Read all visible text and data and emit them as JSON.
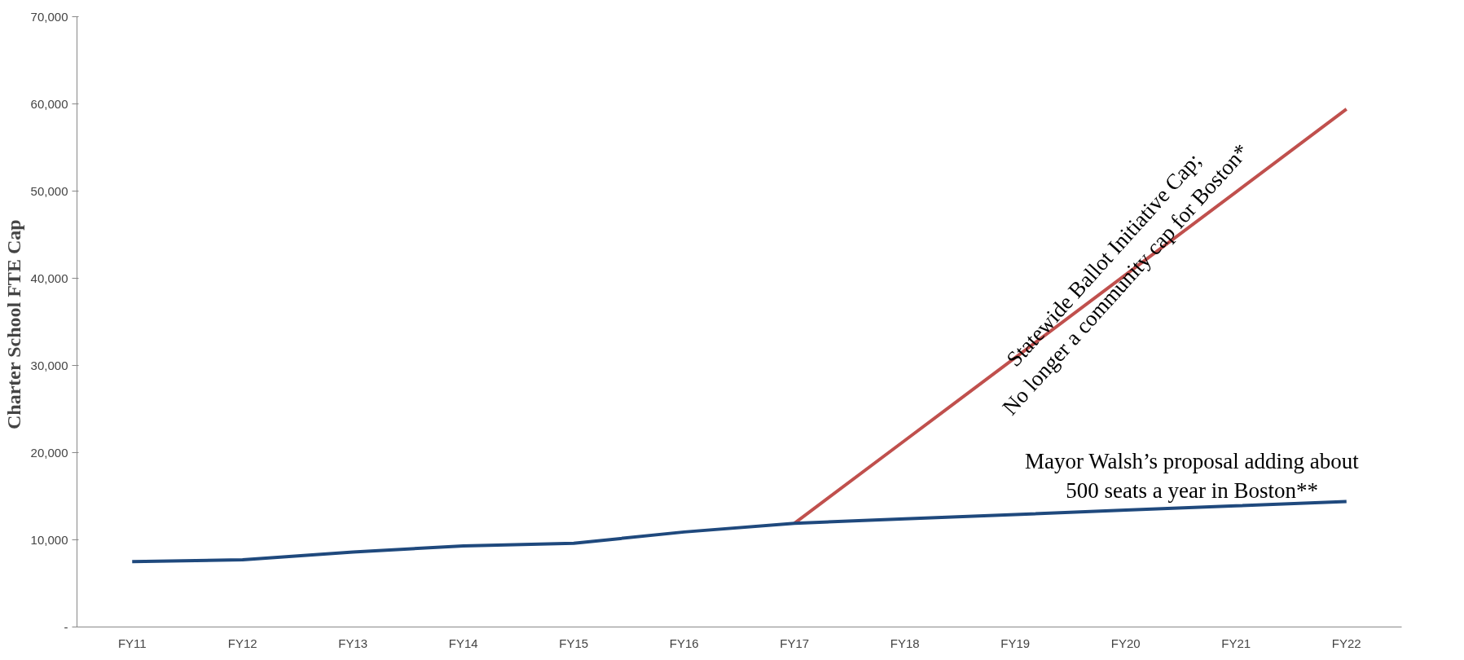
{
  "chart_data": {
    "type": "line",
    "ylabel": "Charter School  FTE Cap",
    "categories": [
      "FY11",
      "FY12",
      "FY13",
      "FY14",
      "FY15",
      "FY16",
      "FY17",
      "FY18",
      "FY19",
      "FY20",
      "FY21",
      "FY22"
    ],
    "series": [
      {
        "color": "#c0504d",
        "values": [
          null,
          null,
          null,
          null,
          null,
          null,
          11900,
          21400,
          30900,
          40400,
          49900,
          59400
        ]
      },
      {
        "color": "#1f497d",
        "values": [
          7500,
          7700,
          8600,
          9300,
          9600,
          10900,
          11900,
          12400,
          12900,
          13400,
          13900,
          14400
        ]
      }
    ],
    "ylim": [
      0,
      70000
    ],
    "yticks": [
      {
        "value": 0,
        "label": "-"
      },
      {
        "value": 10000,
        "label": "10,000"
      },
      {
        "value": 20000,
        "label": "20,000"
      },
      {
        "value": 30000,
        "label": "30,000"
      },
      {
        "value": 40000,
        "label": "40,000"
      },
      {
        "value": 50000,
        "label": "50,000"
      },
      {
        "value": 60000,
        "label": "60,000"
      },
      {
        "value": 70000,
        "label": "70,000"
      }
    ],
    "annotations": [
      "Statewide Ballot Initiative Cap;\nNo longer a community cap for Boston*",
      "Mayor Walsh’s proposal adding about\n500 seats a year in Boston**"
    ],
    "grid": false,
    "marker": "none",
    "line_style": "solid"
  }
}
